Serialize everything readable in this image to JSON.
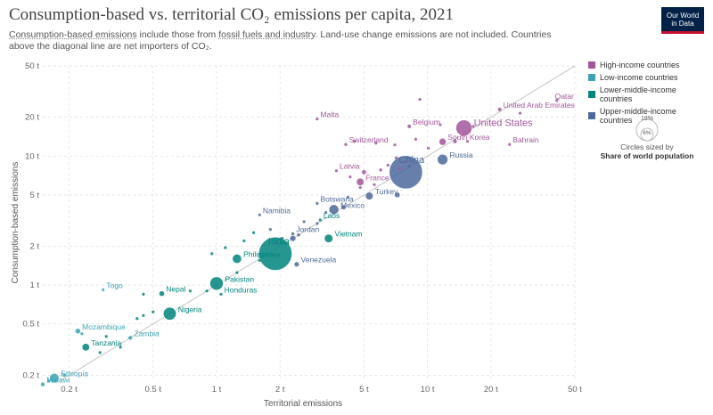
{
  "header": {
    "title": "Consumption-based vs. territorial CO₂ emissions per capita, 2021",
    "subtitle_part1": "Consumption-based emissions",
    "subtitle_part2": " include those from ",
    "subtitle_part3": "fossil fuels and industry",
    "subtitle_part4": ". Land-use change emissions are not included. Countries above the diagonal line are net importers of CO₂."
  },
  "logo": {
    "line1": "Our World",
    "line2": "in Data"
  },
  "legend": {
    "items": [
      {
        "label": "High-income countries",
        "color": "#a2559c"
      },
      {
        "label": "Low-income countries",
        "color": "#3aa4b5"
      },
      {
        "label": "Lower-middle-income countries",
        "color": "#00847e"
      },
      {
        "label": "Upper-middle-income countries",
        "color": "#4c6a9c"
      }
    ],
    "size_big": "18%",
    "size_small": "6%",
    "size_caption": "Circles sized by",
    "size_metric": "Share of world population"
  },
  "colors": {
    "high": "#a2559c",
    "low": "#3aa4b5",
    "lower_middle": "#00847e",
    "upper_middle": "#4c6a9c"
  },
  "chart_data": {
    "type": "scatter",
    "xlabel": "Territorial emissions",
    "ylabel": "Consumption-based emissions",
    "x_scale": "log",
    "y_scale": "log",
    "xlim": [
      0.15,
      50
    ],
    "ylim": [
      0.18,
      50
    ],
    "x_ticks": [
      {
        "v": 0.2,
        "l": "0.2 t"
      },
      {
        "v": 0.5,
        "l": "0.5 t"
      },
      {
        "v": 1,
        "l": "1 t"
      },
      {
        "v": 2,
        "l": "2 t"
      },
      {
        "v": 5,
        "l": "5 t"
      },
      {
        "v": 10,
        "l": "10 t"
      },
      {
        "v": 20,
        "l": "20 t"
      },
      {
        "v": 50,
        "l": "50 t"
      }
    ],
    "y_ticks": [
      {
        "v": 0.2,
        "l": "0.2 t"
      },
      {
        "v": 0.5,
        "l": "0.5 t"
      },
      {
        "v": 1,
        "l": "1 t"
      },
      {
        "v": 2,
        "l": "2 t"
      },
      {
        "v": 5,
        "l": "5 t"
      },
      {
        "v": 10,
        "l": "10 t"
      },
      {
        "v": 20,
        "l": "20 t"
      },
      {
        "v": 50,
        "l": "50 t"
      }
    ],
    "diagonal_line": true,
    "grid": true,
    "points": [
      {
        "label": "China",
        "x": 7.9,
        "y": 7.5,
        "g": "upper_middle",
        "size": 18
      },
      {
        "label": "India",
        "x": 1.9,
        "y": 1.75,
        "g": "lower_middle",
        "size": 18
      },
      {
        "label": "United States",
        "x": 14.9,
        "y": 16.5,
        "g": "high",
        "size": 4.2
      },
      {
        "label": "Russia",
        "x": 11.8,
        "y": 9.4,
        "g": "upper_middle",
        "size": 1.8
      },
      {
        "label": "Qatar",
        "x": 41,
        "y": 27,
        "g": "high",
        "size": 0.1
      },
      {
        "label": "United Arab Emirates",
        "x": 22,
        "y": 23,
        "g": "high",
        "size": 0.2
      },
      {
        "label": "Malta",
        "x": 3.0,
        "y": 19.4,
        "g": "high",
        "size": 0.05
      },
      {
        "label": "Belgium",
        "x": 8.2,
        "y": 17.0,
        "g": "high",
        "size": 0.2
      },
      {
        "label": "Switzerland",
        "x": 4.1,
        "y": 12.3,
        "g": "high",
        "size": 0.15
      },
      {
        "label": "South Korea",
        "x": 11.8,
        "y": 12.9,
        "g": "high",
        "size": 0.7
      },
      {
        "label": "Bahrain",
        "x": 24.5,
        "y": 12.3,
        "g": "high",
        "size": 0.05
      },
      {
        "label": "Latvia",
        "x": 3.7,
        "y": 7.7,
        "g": "high",
        "size": 0.05
      },
      {
        "label": "France",
        "x": 4.8,
        "y": 6.3,
        "g": "high",
        "size": 0.8
      },
      {
        "label": "Turkey",
        "x": 5.3,
        "y": 4.9,
        "g": "upper_middle",
        "size": 1.0
      },
      {
        "label": "Botswana",
        "x": 3.0,
        "y": 4.3,
        "g": "upper_middle",
        "size": 0.05
      },
      {
        "label": "Mexico",
        "x": 3.6,
        "y": 3.85,
        "g": "upper_middle",
        "size": 1.6
      },
      {
        "label": "Namibia",
        "x": 1.6,
        "y": 3.5,
        "g": "upper_middle",
        "size": 0.05
      },
      {
        "label": "Laos",
        "x": 3.1,
        "y": 3.2,
        "g": "lower_middle",
        "size": 0.1
      },
      {
        "label": "Jordan",
        "x": 2.3,
        "y": 2.5,
        "g": "upper_middle",
        "size": 0.15
      },
      {
        "label": "Vietnam",
        "x": 3.4,
        "y": 2.3,
        "g": "lower_middle",
        "size": 1.2
      },
      {
        "label": "Philippines",
        "x": 1.25,
        "y": 1.6,
        "g": "lower_middle",
        "size": 1.4
      },
      {
        "label": "Venezuela",
        "x": 2.4,
        "y": 1.45,
        "g": "upper_middle",
        "size": 0.35
      },
      {
        "label": "Pakistan",
        "x": 1.0,
        "y": 1.03,
        "g": "lower_middle",
        "size": 2.9
      },
      {
        "label": "Honduras",
        "x": 1.05,
        "y": 0.85,
        "g": "lower_middle",
        "size": 0.12
      },
      {
        "label": "Nepal",
        "x": 0.55,
        "y": 0.86,
        "g": "lower_middle",
        "size": 0.4
      },
      {
        "label": "Togo",
        "x": 0.29,
        "y": 0.92,
        "g": "low",
        "size": 0.1
      },
      {
        "label": "Nigeria",
        "x": 0.6,
        "y": 0.6,
        "g": "lower_middle",
        "size": 2.7
      },
      {
        "label": "Mozambique",
        "x": 0.22,
        "y": 0.44,
        "g": "low",
        "size": 0.4
      },
      {
        "label": "Zambia",
        "x": 0.39,
        "y": 0.39,
        "g": "low",
        "size": 0.25
      },
      {
        "label": "Tanzania",
        "x": 0.24,
        "y": 0.33,
        "g": "lower_middle",
        "size": 0.8
      },
      {
        "label": "Ethiopia",
        "x": 0.17,
        "y": 0.19,
        "g": "low",
        "size": 1.5
      },
      {
        "label": "Malawi",
        "x": 0.15,
        "y": 0.17,
        "g": "low",
        "size": 0.25
      },
      {
        "x": 9.2,
        "y": 27.5,
        "g": "high",
        "size": 0.06
      },
      {
        "x": 27.5,
        "y": 21.5,
        "g": "high",
        "size": 0.06
      },
      {
        "x": 11.5,
        "y": 17.5,
        "g": "high",
        "size": 0.06
      },
      {
        "x": 16.5,
        "y": 17.0,
        "g": "high",
        "size": 0.1
      },
      {
        "x": 13.5,
        "y": 13.0,
        "g": "high",
        "size": 0.25
      },
      {
        "x": 15.5,
        "y": 13.0,
        "g": "high",
        "size": 0.12
      },
      {
        "x": 4.5,
        "y": 13.0,
        "g": "high",
        "size": 0.06
      },
      {
        "x": 8.8,
        "y": 13.5,
        "g": "high",
        "size": 0.06
      },
      {
        "x": 7.0,
        "y": 12.2,
        "g": "high",
        "size": 0.06
      },
      {
        "x": 5.7,
        "y": 12.6,
        "g": "high",
        "size": 0.06
      },
      {
        "x": 10.1,
        "y": 11.5,
        "g": "high",
        "size": 0.08
      },
      {
        "x": 5.0,
        "y": 7.5,
        "g": "high",
        "size": 0.3
      },
      {
        "x": 6.0,
        "y": 7.8,
        "g": "high",
        "size": 0.15
      },
      {
        "x": 7.1,
        "y": 9.7,
        "g": "high",
        "size": 0.1
      },
      {
        "x": 6.5,
        "y": 8.5,
        "g": "high",
        "size": 0.1
      },
      {
        "x": 7.4,
        "y": 8.0,
        "g": "high",
        "size": 0.08
      },
      {
        "x": 4.3,
        "y": 6.9,
        "g": "high",
        "size": 0.06
      },
      {
        "x": 4.8,
        "y": 5.7,
        "g": "high",
        "size": 0.12
      },
      {
        "x": 5.6,
        "y": 6.0,
        "g": "high",
        "size": 0.08
      },
      {
        "x": 7.8,
        "y": 9.0,
        "g": "high",
        "size": 0.1
      },
      {
        "x": 8.2,
        "y": 8.4,
        "g": "upper_middle",
        "size": 0.12
      },
      {
        "x": 7.2,
        "y": 5.0,
        "g": "upper_middle",
        "size": 0.4
      },
      {
        "x": 4.2,
        "y": 4.8,
        "g": "upper_middle",
        "size": 0.1
      },
      {
        "x": 3.3,
        "y": 3.65,
        "g": "upper_middle",
        "size": 0.08
      },
      {
        "x": 4.0,
        "y": 4.0,
        "g": "upper_middle",
        "size": 0.3
      },
      {
        "x": 3.0,
        "y": 3.0,
        "g": "upper_middle",
        "size": 0.06
      },
      {
        "x": 2.6,
        "y": 3.1,
        "g": "upper_middle",
        "size": 0.06
      },
      {
        "x": 2.3,
        "y": 2.3,
        "g": "upper_middle",
        "size": 0.5
      },
      {
        "x": 2.45,
        "y": 2.45,
        "g": "upper_middle",
        "size": 0.15
      },
      {
        "x": 1.8,
        "y": 2.7,
        "g": "upper_middle",
        "size": 0.06
      },
      {
        "x": 2.05,
        "y": 2.3,
        "g": "upper_middle",
        "size": 0.06
      },
      {
        "x": 1.9,
        "y": 2.1,
        "g": "upper_middle",
        "size": 0.1
      },
      {
        "x": 1.5,
        "y": 2.55,
        "g": "lower_middle",
        "size": 0.06
      },
      {
        "x": 1.35,
        "y": 2.2,
        "g": "lower_middle",
        "size": 0.06
      },
      {
        "x": 1.1,
        "y": 1.95,
        "g": "lower_middle",
        "size": 0.06
      },
      {
        "x": 0.95,
        "y": 1.75,
        "g": "lower_middle",
        "size": 0.06
      },
      {
        "x": 1.6,
        "y": 1.55,
        "g": "lower_middle",
        "size": 0.12
      },
      {
        "x": 1.25,
        "y": 1.25,
        "g": "lower_middle",
        "size": 0.1
      },
      {
        "x": 0.9,
        "y": 0.9,
        "g": "lower_middle",
        "size": 0.06
      },
      {
        "x": 0.75,
        "y": 0.9,
        "g": "lower_middle",
        "size": 0.06
      },
      {
        "x": 0.45,
        "y": 0.85,
        "g": "lower_middle",
        "size": 0.06
      },
      {
        "x": 0.5,
        "y": 0.62,
        "g": "lower_middle",
        "size": 0.12
      },
      {
        "x": 0.45,
        "y": 0.58,
        "g": "lower_middle",
        "size": 0.06
      },
      {
        "x": 0.42,
        "y": 0.55,
        "g": "lower_middle",
        "size": 0.06
      },
      {
        "x": 0.3,
        "y": 0.4,
        "g": "lower_middle",
        "size": 0.06
      },
      {
        "x": 0.35,
        "y": 0.33,
        "g": "lower_middle",
        "size": 0.06
      },
      {
        "x": 0.28,
        "y": 0.3,
        "g": "lower_middle",
        "size": 0.06
      },
      {
        "x": 0.19,
        "y": 0.2,
        "g": "low",
        "size": 0.15
      },
      {
        "x": 0.16,
        "y": 0.18,
        "g": "low",
        "size": 0.1
      },
      {
        "x": 0.23,
        "y": 0.42,
        "g": "low",
        "size": 0.12
      }
    ]
  }
}
